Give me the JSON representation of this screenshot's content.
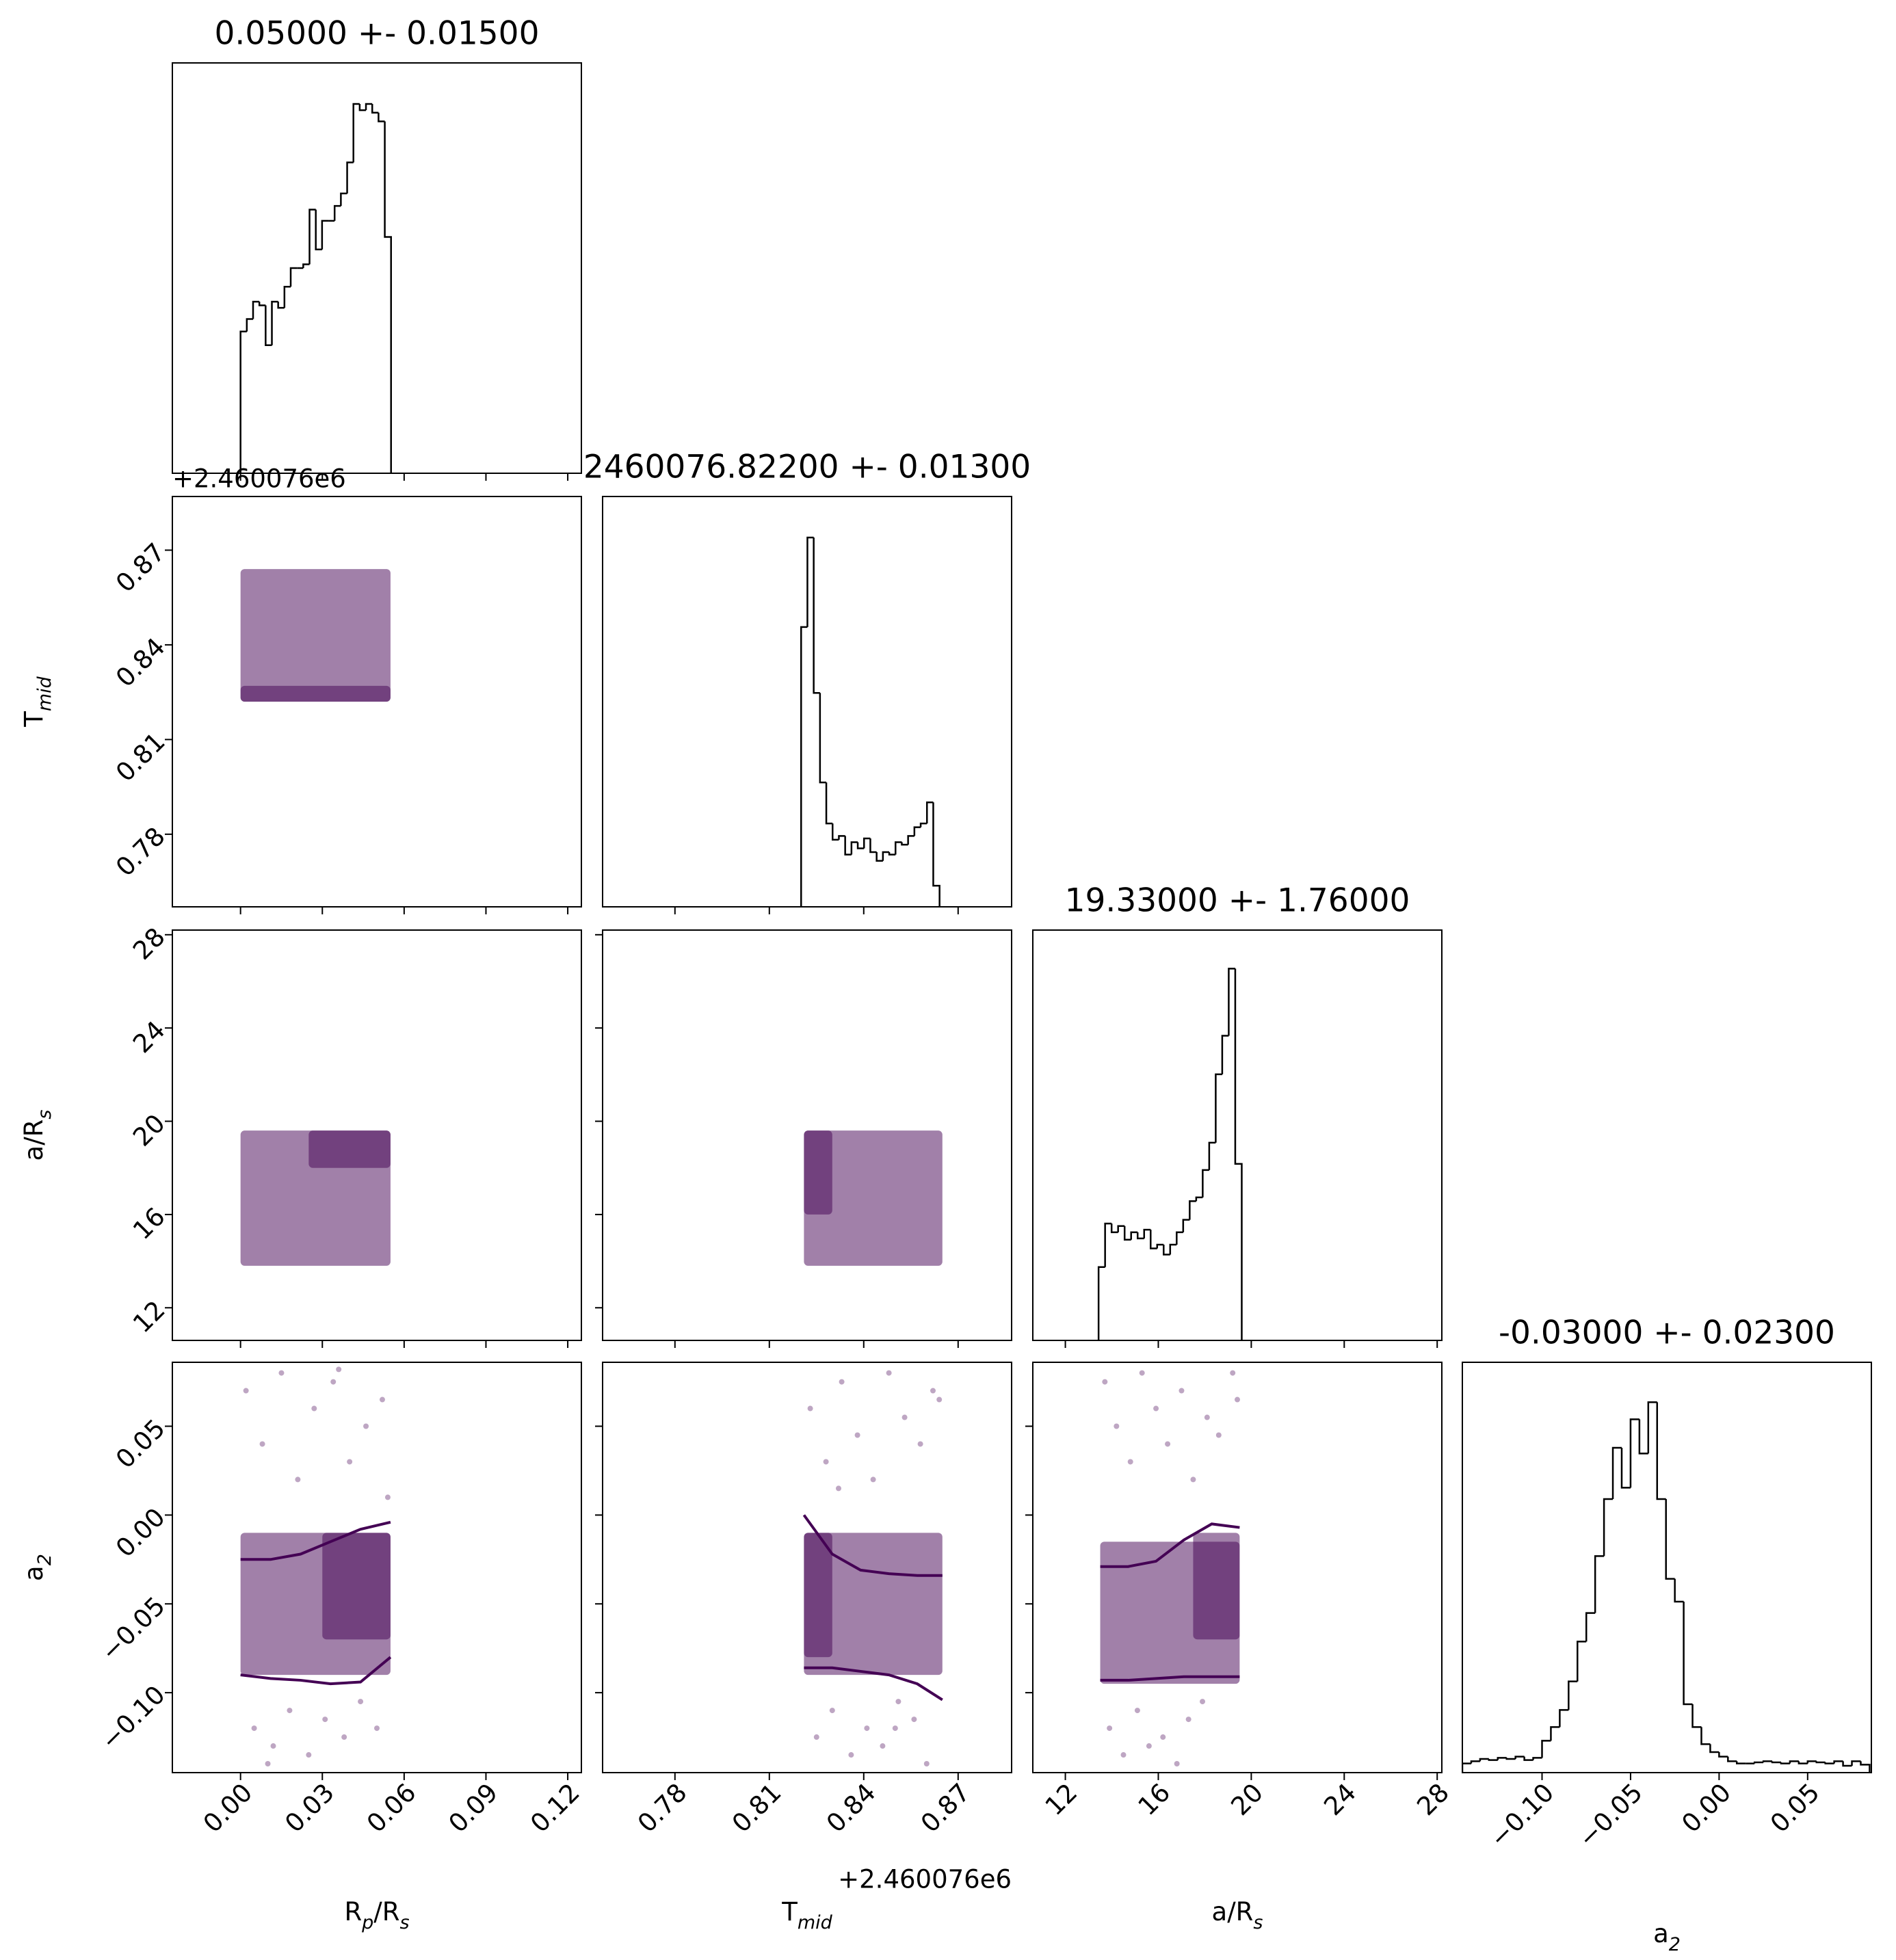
{
  "chart_data": [
    {
      "type": "histogram",
      "title": "0.05000 +- 0.01500",
      "color": "#000000",
      "xlim": [
        -0.025,
        0.125
      ],
      "xticks": [
        0,
        0.03,
        0.06,
        0.09,
        0.12
      ],
      "ylim": [
        0,
        330
      ],
      "bins": [
        0,
        0.0023,
        0.0046,
        0.0069,
        0.0092,
        0.0115,
        0.0138,
        0.0161,
        0.0184,
        0.0207,
        0.023,
        0.0253,
        0.0276,
        0.0299,
        0.0322,
        0.0345,
        0.0368,
        0.0391,
        0.0414,
        0.0437,
        0.046,
        0.0483,
        0.0506,
        0.0529,
        0.0552
      ],
      "counts": [
        114,
        124,
        138,
        135,
        103,
        138,
        133,
        150,
        165,
        165,
        168,
        212,
        180,
        203,
        203,
        215,
        225,
        250,
        297,
        292,
        297,
        290,
        283,
        190
      ]
    },
    {
      "type": "scatter",
      "color": "#440154",
      "ylabel": [
        "T",
        "mid"
      ],
      "y_offset": "+2.460076e6",
      "show_yticklabels": true,
      "xlim": [
        -0.025,
        0.125
      ],
      "xticks": [
        0,
        0.03,
        0.06,
        0.09,
        0.12
      ],
      "ylim": [
        0.757,
        0.887
      ],
      "yticks": [
        {
          "value": 0.78,
          "label": "0.78"
        },
        {
          "value": 0.81,
          "label": "0.81"
        },
        {
          "value": 0.84,
          "label": "0.84"
        },
        {
          "value": 0.87,
          "label": "0.87"
        }
      ],
      "regions": [
        {
          "x": [
            0,
            0.055
          ],
          "y": [
            0.822,
            0.864
          ]
        },
        {
          "x": [
            0,
            0.055
          ],
          "y": [
            0.822,
            0.827
          ]
        }
      ]
    },
    {
      "type": "histogram",
      "title": "2460076.82200 +- 0.01300",
      "color": "#000000",
      "xlim": [
        0.757,
        0.887
      ],
      "xticks": [
        0.78,
        0.81,
        0.84,
        0.87
      ],
      "ylim": [
        0,
        330
      ],
      "bins": [
        0.8201,
        0.8221,
        0.8241,
        0.8261,
        0.8281,
        0.8301,
        0.8321,
        0.8341,
        0.8361,
        0.8381,
        0.8401,
        0.8421,
        0.8441,
        0.8461,
        0.8481,
        0.8501,
        0.8521,
        0.8541,
        0.8561,
        0.8581,
        0.8601,
        0.8621,
        0.8641
      ],
      "counts": [
        225,
        297,
        172,
        100,
        67,
        54,
        57,
        42,
        52,
        47,
        55,
        44,
        37,
        44,
        42,
        52,
        50,
        57,
        64,
        67,
        84,
        17
      ]
    },
    {
      "type": "scatter",
      "color": "#440154",
      "ylabel": [
        "a/R",
        "s"
      ],
      "show_yticklabels": true,
      "xlim": [
        -0.025,
        0.125
      ],
      "xticks": [
        0,
        0.03,
        0.06,
        0.09,
        0.12
      ],
      "ylim": [
        10.6,
        28.2
      ],
      "yticks": [
        12,
        16,
        20,
        24,
        28
      ],
      "regions": [
        {
          "x": [
            0,
            0.055
          ],
          "y": [
            13.8,
            19.6
          ]
        },
        {
          "x": [
            0.025,
            0.055
          ],
          "y": [
            18,
            19.6
          ]
        }
      ]
    },
    {
      "type": "scatter",
      "color": "#440154",
      "xlim": [
        0.757,
        0.887
      ],
      "xticks": [
        0.78,
        0.81,
        0.84,
        0.87
      ],
      "ylim": [
        10.6,
        28.2
      ],
      "yticks": [
        12,
        16,
        20,
        24,
        28
      ],
      "regions": [
        {
          "x": [
            0.821,
            0.865
          ],
          "y": [
            13.8,
            19.6
          ]
        },
        {
          "x": [
            0.821,
            0.83
          ],
          "y": [
            16,
            19.6
          ]
        }
      ]
    },
    {
      "type": "histogram",
      "title": "19.33000 +- 1.76000",
      "color": "#000000",
      "xlim": [
        10.6,
        28.2
      ],
      "xticks": [
        12,
        16,
        20,
        24,
        28
      ],
      "ylim": [
        0,
        330
      ],
      "bins": [
        13.43,
        13.71,
        13.99,
        14.27,
        14.55,
        14.83,
        15.11,
        15.39,
        15.67,
        15.95,
        16.23,
        16.51,
        16.79,
        17.07,
        17.35,
        17.63,
        17.91,
        18.19,
        18.47,
        18.75,
        19.03,
        19.31,
        19.59
      ],
      "counts": [
        59,
        94,
        87,
        92,
        81,
        87,
        82,
        89,
        74,
        77,
        69,
        77,
        87,
        97,
        112,
        115,
        137,
        159,
        214,
        245,
        299,
        142
      ]
    },
    {
      "type": "scatter",
      "color": "#440154",
      "xlabel": [
        "R",
        "p",
        "/R",
        "s"
      ],
      "ylabel": [
        "a",
        "2"
      ],
      "show_xticklabels": true,
      "show_yticklabels": true,
      "xlim": [
        -0.025,
        0.125
      ],
      "xticks": [
        {
          "value": 0,
          "label": "0.00"
        },
        {
          "value": 0.03,
          "label": "0.03"
        },
        {
          "value": 0.06,
          "label": "0.06"
        },
        {
          "value": 0.09,
          "label": "0.09"
        },
        {
          "value": 0.12,
          "label": "0.12"
        }
      ],
      "ylim": [
        -0.145,
        0.086
      ],
      "yticks": [
        {
          "value": -0.1,
          "label": "−0.10"
        },
        {
          "value": -0.05,
          "label": "−0.05"
        },
        {
          "value": 0,
          "label": "0.00"
        },
        {
          "value": 0.05,
          "label": "0.05"
        }
      ],
      "regions": [
        {
          "x": [
            0,
            0.055
          ],
          "y": [
            -0.09,
            -0.01
          ]
        },
        {
          "x": [
            0.03,
            0.055
          ],
          "y": [
            -0.07,
            -0.01
          ]
        }
      ],
      "x": [
        0.002,
        0.008,
        0.015,
        0.021,
        0.027,
        0.034,
        0.04,
        0.046,
        0.052,
        0.005,
        0.012,
        0.018,
        0.025,
        0.031,
        0.038,
        0.044,
        0.05,
        0.054,
        0.01,
        0.036
      ],
      "y": [
        0.07,
        0.04,
        0.08,
        0.02,
        0.06,
        0.075,
        0.03,
        0.05,
        0.065,
        -0.12,
        -0.13,
        -0.11,
        -0.135,
        -0.115,
        -0.125,
        -0.105,
        -0.12,
        0.01,
        -0.14,
        0.082
      ],
      "lines": [
        {
          "x": [
            0,
            0.011,
            0.022,
            0.033,
            0.044,
            0.055
          ],
          "y": [
            -0.025,
            -0.025,
            -0.022,
            -0.015,
            -0.008,
            -0.004
          ]
        },
        {
          "x": [
            0,
            0.011,
            0.022,
            0.033,
            0.044,
            0.055
          ],
          "y": [
            -0.09,
            -0.092,
            -0.093,
            -0.095,
            -0.094,
            -0.08
          ]
        }
      ]
    },
    {
      "type": "scatter",
      "color": "#440154",
      "xlabel": [
        "T",
        "mid"
      ],
      "x_offset": "+2.460076e6",
      "show_xticklabels": true,
      "xlim": [
        0.757,
        0.887
      ],
      "xticks": [
        {
          "value": 0.78,
          "label": "0.78"
        },
        {
          "value": 0.81,
          "label": "0.81"
        },
        {
          "value": 0.84,
          "label": "0.84"
        },
        {
          "value": 0.87,
          "label": "0.87"
        }
      ],
      "ylim": [
        -0.145,
        0.086
      ],
      "yticks": [
        -0.1,
        -0.05,
        0,
        0.05
      ],
      "regions": [
        {
          "x": [
            0.821,
            0.865
          ],
          "y": [
            -0.09,
            -0.01
          ]
        },
        {
          "x": [
            0.821,
            0.83
          ],
          "y": [
            -0.08,
            -0.01
          ]
        }
      ],
      "x": [
        0.823,
        0.828,
        0.833,
        0.838,
        0.843,
        0.848,
        0.853,
        0.858,
        0.862,
        0.825,
        0.83,
        0.836,
        0.841,
        0.846,
        0.851,
        0.856,
        0.86,
        0.864,
        0.832,
        0.85
      ],
      "y": [
        0.06,
        0.03,
        0.075,
        0.045,
        0.02,
        0.08,
        0.055,
        0.04,
        0.07,
        -0.125,
        -0.11,
        -0.135,
        -0.12,
        -0.13,
        -0.105,
        -0.115,
        -0.14,
        0.065,
        0.015,
        -0.12
      ],
      "lines": [
        {
          "x": [
            0.821,
            0.83,
            0.839,
            0.848,
            0.857,
            0.865
          ],
          "y": [
            0,
            -0.022,
            -0.031,
            -0.033,
            -0.034,
            -0.034
          ]
        },
        {
          "x": [
            0.821,
            0.83,
            0.839,
            0.848,
            0.857,
            0.865
          ],
          "y": [
            -0.086,
            -0.086,
            -0.088,
            -0.09,
            -0.095,
            -0.104
          ]
        }
      ]
    },
    {
      "type": "scatter",
      "color": "#440154",
      "xlabel": [
        "a/R",
        "s"
      ],
      "show_xticklabels": true,
      "xlim": [
        10.6,
        28.2
      ],
      "xticks": [
        12,
        16,
        20,
        24,
        28
      ],
      "ylim": [
        -0.145,
        0.086
      ],
      "yticks": [
        -0.1,
        -0.05,
        0,
        0.05
      ],
      "regions": [
        {
          "x": [
            13.5,
            19.5
          ],
          "y": [
            -0.095,
            -0.015
          ]
        },
        {
          "x": [
            17.5,
            19.5
          ],
          "y": [
            -0.07,
            -0.01
          ]
        }
      ],
      "x": [
        13.7,
        14.2,
        14.8,
        15.3,
        15.9,
        16.4,
        17,
        17.5,
        18.1,
        18.6,
        19.2,
        13.9,
        14.5,
        15.1,
        15.6,
        16.2,
        16.8,
        17.3,
        17.9,
        19.4
      ],
      "y": [
        0.075,
        0.05,
        0.03,
        0.08,
        0.06,
        0.04,
        0.07,
        0.02,
        0.055,
        0.045,
        0.08,
        -0.12,
        -0.135,
        -0.11,
        -0.13,
        -0.125,
        -0.14,
        -0.115,
        -0.105,
        0.065
      ],
      "lines": [
        {
          "x": [
            13.5,
            14.7,
            15.9,
            17.1,
            18.3,
            19.5
          ],
          "y": [
            -0.029,
            -0.029,
            -0.026,
            -0.014,
            -0.005,
            -0.007
          ]
        },
        {
          "x": [
            13.5,
            14.7,
            15.9,
            17.1,
            18.3,
            19.5
          ],
          "y": [
            -0.093,
            -0.093,
            -0.092,
            -0.091,
            -0.091,
            -0.091
          ]
        }
      ]
    },
    {
      "type": "histogram",
      "title": "-0.03000 +- 0.02300",
      "color": "#000000",
      "xlabel": [
        "a",
        "2"
      ],
      "show_xticklabels": true,
      "xlim": [
        -0.145,
        0.086
      ],
      "xticks": [
        {
          "value": -0.1,
          "label": "−0.10"
        },
        {
          "value": -0.05,
          "label": "−0.05"
        },
        {
          "value": 0,
          "label": "0.00"
        },
        {
          "value": 0.05,
          "label": "0.05"
        }
      ],
      "ylim": [
        0,
        360
      ],
      "bins": [
        -0.145,
        -0.14,
        -0.135,
        -0.13,
        -0.125,
        -0.12,
        -0.115,
        -0.11,
        -0.105,
        -0.1,
        -0.095,
        -0.09,
        -0.085,
        -0.08,
        -0.075,
        -0.07,
        -0.065,
        -0.06,
        -0.055,
        -0.05,
        -0.045,
        -0.04,
        -0.035,
        -0.03,
        -0.025,
        -0.02,
        -0.015,
        -0.01,
        -0.005,
        0,
        0.005,
        0.01,
        0.015,
        0.02,
        0.025,
        0.03,
        0.035,
        0.04,
        0.045,
        0.05,
        0.055,
        0.06,
        0.065,
        0.07,
        0.075,
        0.08,
        0.085
      ],
      "counts": [
        8,
        10,
        12,
        11,
        13,
        12,
        14,
        11,
        13,
        28,
        40,
        55,
        80,
        115,
        140,
        190,
        240,
        285,
        250,
        310,
        280,
        325,
        240,
        170,
        150,
        60,
        40,
        25,
        18,
        14,
        10,
        8,
        8,
        9,
        10,
        9,
        8,
        10,
        8,
        10,
        9,
        8,
        10,
        6,
        10,
        7
      ]
    }
  ]
}
